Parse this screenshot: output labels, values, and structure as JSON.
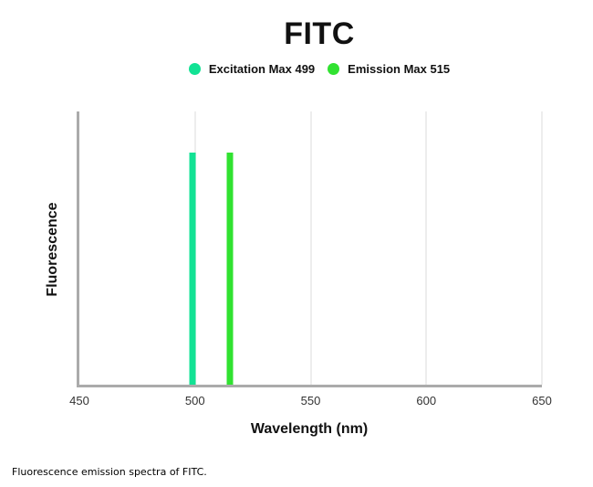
{
  "chart_data": {
    "type": "bar",
    "title": "FITC",
    "xlabel": "Wavelength (nm)",
    "ylabel": "Fluorescence",
    "xlim": [
      450,
      650
    ],
    "xticks": [
      450,
      500,
      550,
      600,
      650
    ],
    "grid": true,
    "legend_position": "top",
    "series": [
      {
        "key": "excitation-peak",
        "name": "Excitation Max 499",
        "wavelength_nm": 499,
        "peak_height_fraction": 0.85,
        "color": "#12e294"
      },
      {
        "key": "emission-peak",
        "name": "Emission Max 515",
        "wavelength_nm": 515,
        "peak_height_fraction": 0.85,
        "color": "#31e231"
      }
    ],
    "colors": {
      "axis": "#ababab",
      "gridline": "#ededed",
      "tick_text": "#333333",
      "text": "#111111"
    }
  },
  "caption": "Fluorescence emission spectra of FITC."
}
